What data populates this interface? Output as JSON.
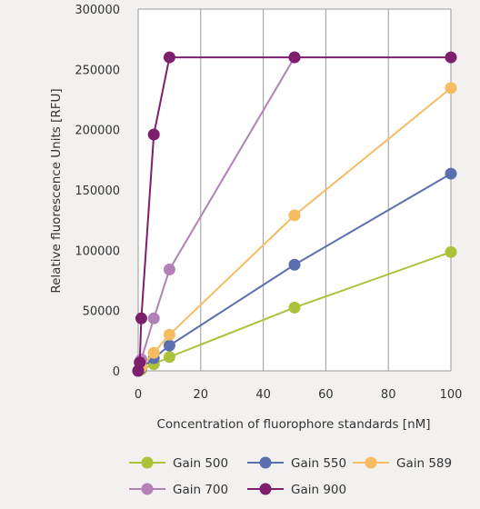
{
  "chart_data": {
    "type": "line",
    "title": "",
    "xlabel": "Concentration of fluorophore standards [nM]",
    "ylabel": "Relative fluorescence Units [RFU]",
    "xlim": [
      0,
      100
    ],
    "ylim": [
      0,
      300000
    ],
    "xticks": [
      0,
      20,
      40,
      60,
      80,
      100
    ],
    "yticks": [
      0,
      50000,
      100000,
      150000,
      200000,
      250000,
      300000
    ],
    "xtick_labels": [
      "0",
      "20",
      "40",
      "60",
      "80",
      "100"
    ],
    "ytick_labels": [
      "0",
      "50000",
      "100000",
      "150000",
      "200000",
      "250000",
      "300000"
    ],
    "grid": "vertical",
    "legend_position": "bottom",
    "series": [
      {
        "name": "Gain 500",
        "color": "#abc23a",
        "x": [
          0,
          1,
          5,
          10,
          50,
          100
        ],
        "y": [
          0,
          1100,
          5500,
          11500,
          52500,
          98500
        ]
      },
      {
        "name": "Gain 550",
        "color": "#5b6fae",
        "x": [
          0,
          1,
          5,
          10,
          50,
          100
        ],
        "y": [
          0,
          2200,
          10500,
          21000,
          88000,
          163500
        ]
      },
      {
        "name": "Gain 589",
        "color": "#f6bc62",
        "x": [
          0,
          1,
          5,
          10,
          50,
          100
        ],
        "y": [
          0,
          3000,
          15000,
          30000,
          129000,
          234500
        ]
      },
      {
        "name": "Gain 700",
        "color": "#b57fb7",
        "x": [
          0,
          1,
          5,
          10,
          50
        ],
        "y": [
          0,
          9500,
          43500,
          84000,
          260000
        ]
      },
      {
        "name": "Gain 900",
        "color": "#7d1f6d",
        "x": [
          0,
          0.5,
          1,
          5,
          10,
          50,
          100
        ],
        "y": [
          0,
          7000,
          43500,
          196000,
          260000,
          260000,
          260000
        ]
      }
    ]
  }
}
